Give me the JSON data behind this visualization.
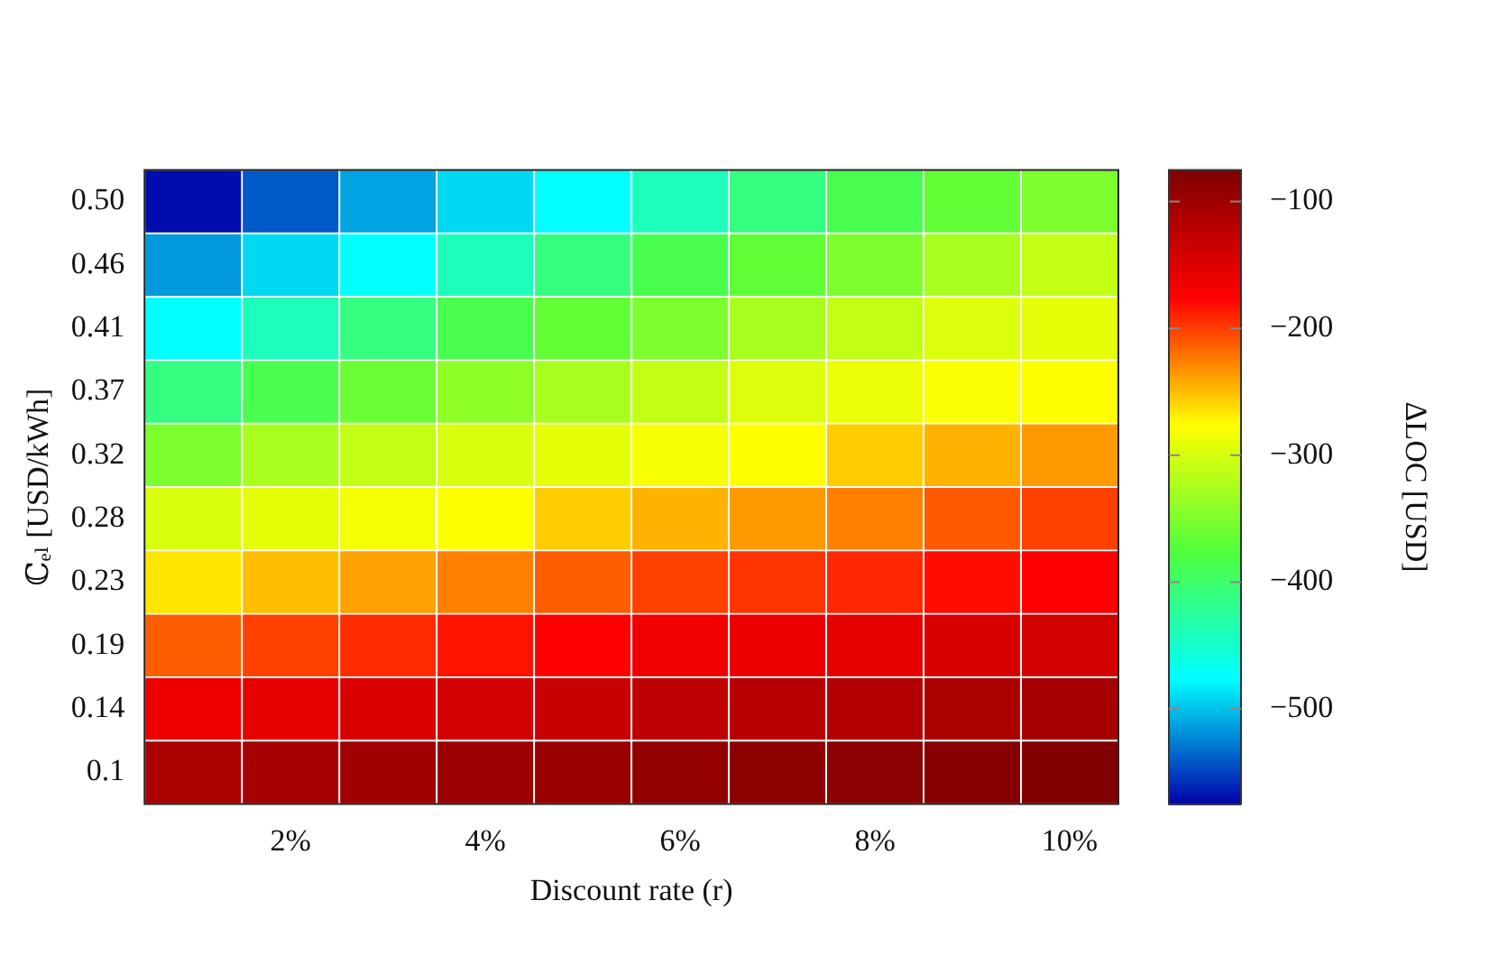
{
  "chart_data": {
    "type": "heatmap",
    "xlabel": "Discount rate (r)",
    "ylabel": "ℂₑₗ [USD/kWh]",
    "clabel": "ΔLOC [USD]",
    "categories": [
      null,
      "2%",
      null,
      "4%",
      null,
      "6%",
      null,
      "8%",
      null,
      "10%"
    ],
    "y_categories": [
      "0.50",
      "0.46",
      "0.41",
      "0.37",
      "0.32",
      "0.28",
      "0.23",
      "0.19",
      "0.14",
      "0.1"
    ],
    "cells": [
      [
        -570,
        -540,
        -510,
        -490,
        -475,
        -440,
        -410,
        -385,
        -365,
        -350
      ],
      [
        -515,
        -490,
        -475,
        -440,
        -410,
        -385,
        -365,
        -350,
        -325,
        -310
      ],
      [
        -475,
        -440,
        -410,
        -385,
        -365,
        -350,
        -325,
        -310,
        -295,
        -290
      ],
      [
        -410,
        -385,
        -360,
        -340,
        -325,
        -310,
        -295,
        -285,
        -278,
        -275
      ],
      [
        -350,
        -325,
        -310,
        -298,
        -290,
        -280,
        -275,
        -255,
        -245,
        -235
      ],
      [
        -298,
        -290,
        -280,
        -275,
        -255,
        -245,
        -235,
        -225,
        -210,
        -200
      ],
      [
        -265,
        -250,
        -238,
        -225,
        -212,
        -200,
        -195,
        -190,
        -180,
        -175
      ],
      [
        -212,
        -200,
        -192,
        -182,
        -175,
        -165,
        -160,
        -155,
        -145,
        -140
      ],
      [
        -162,
        -155,
        -147,
        -140,
        -132,
        -125,
        -120,
        -115,
        -110,
        -105
      ],
      [
        -110,
        -105,
        -102,
        -98,
        -95,
        -90,
        -87,
        -84,
        -80,
        -77
      ]
    ],
    "clim": [
      -575,
      -75
    ],
    "cticks": [
      {
        "value": -500,
        "label": "−500"
      },
      {
        "value": -400,
        "label": "−400"
      },
      {
        "value": -300,
        "label": "−300"
      },
      {
        "value": -200,
        "label": "−200"
      },
      {
        "value": -100,
        "label": "−100"
      }
    ]
  }
}
